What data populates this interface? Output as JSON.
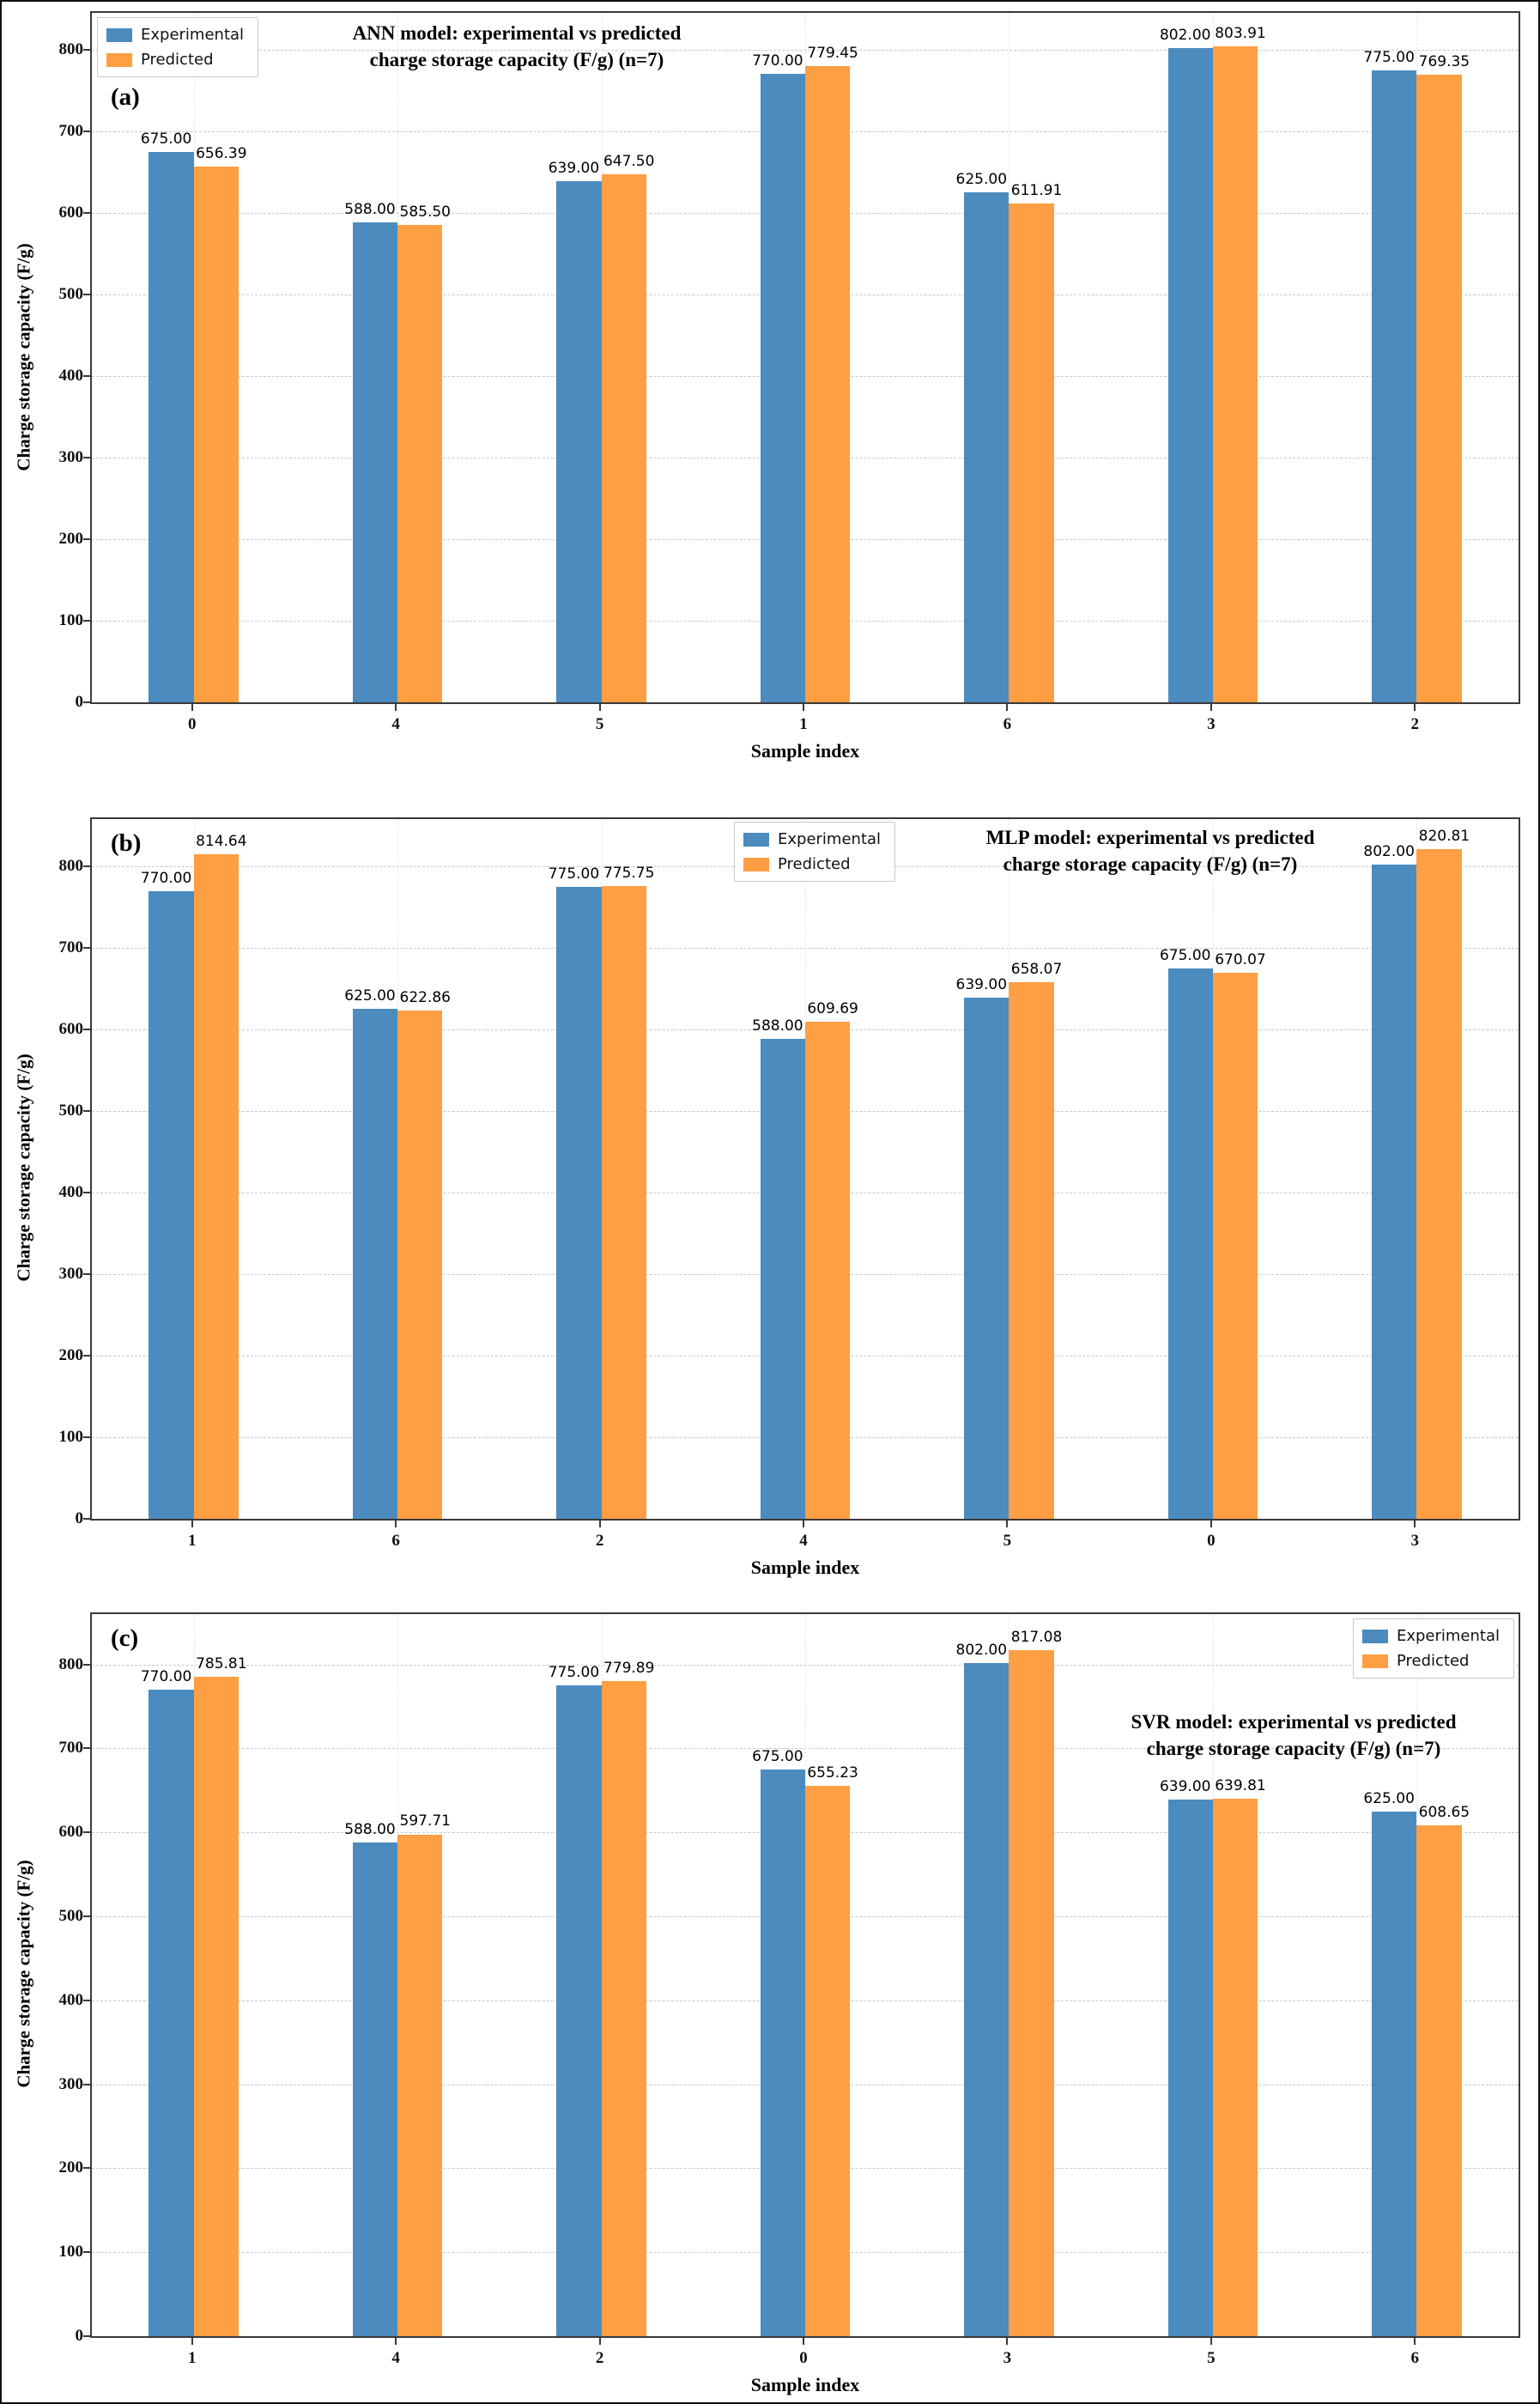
{
  "figure": {
    "background": "#ffffff",
    "frame_color": "#111111"
  },
  "colors": {
    "experimental": "#4C8BBE",
    "predicted": "#FF9E42",
    "grid": "#c8c8c8",
    "axis": "#3a3a3a"
  },
  "legend": {
    "experimental": "Experimental",
    "predicted": "Predicted"
  },
  "chart_data": [
    {
      "type": "bar",
      "panel_label": "(a)",
      "title_line1": "ANN model: experimental vs predicted",
      "title_line2": "charge storage capacity (F/g) (n=7)",
      "xlabel": "Sample index",
      "ylabel": "Charge storage capacity (F/g)",
      "categories": [
        "0",
        "4",
        "5",
        "1",
        "6",
        "3",
        "2"
      ],
      "series": [
        {
          "name": "Experimental",
          "values": [
            675.0,
            588.0,
            639.0,
            770.0,
            625.0,
            802.0,
            775.0
          ]
        },
        {
          "name": "Predicted",
          "values": [
            656.39,
            585.5,
            647.5,
            779.45,
            611.91,
            803.91,
            769.35
          ]
        }
      ],
      "yticks": [
        0,
        100,
        200,
        300,
        400,
        500,
        600,
        700,
        800
      ],
      "ylim": [
        0,
        845
      ],
      "legend_position": "upper-left",
      "grid": true
    },
    {
      "type": "bar",
      "panel_label": "(b)",
      "title_line1": "MLP model: experimental vs predicted",
      "title_line2": "charge storage capacity (F/g) (n=7)",
      "xlabel": "Sample index",
      "ylabel": "Charge storage capacity (F/g)",
      "categories": [
        "1",
        "6",
        "2",
        "4",
        "5",
        "0",
        "3"
      ],
      "series": [
        {
          "name": "Experimental",
          "values": [
            770.0,
            625.0,
            775.0,
            588.0,
            639.0,
            675.0,
            802.0
          ]
        },
        {
          "name": "Predicted",
          "values": [
            814.64,
            622.86,
            775.75,
            609.69,
            658.07,
            670.07,
            820.81
          ]
        }
      ],
      "yticks": [
        0,
        100,
        200,
        300,
        400,
        500,
        600,
        700,
        800
      ],
      "ylim": [
        0,
        858
      ],
      "legend_position": "upper-center",
      "grid": true
    },
    {
      "type": "bar",
      "panel_label": "(c)",
      "title_line1": "SVR model: experimental vs predicted",
      "title_line2": "charge storage capacity (F/g) (n=7)",
      "xlabel": "Sample index",
      "ylabel": "Charge storage capacity (F/g)",
      "categories": [
        "1",
        "4",
        "2",
        "0",
        "3",
        "5",
        "6"
      ],
      "series": [
        {
          "name": "Experimental",
          "values": [
            770.0,
            588.0,
            775.0,
            675.0,
            802.0,
            639.0,
            625.0
          ]
        },
        {
          "name": "Predicted",
          "values": [
            785.81,
            597.71,
            779.89,
            655.23,
            817.08,
            639.81,
            608.65
          ]
        }
      ],
      "yticks": [
        0,
        100,
        200,
        300,
        400,
        500,
        600,
        700,
        800
      ],
      "ylim": [
        0,
        860
      ],
      "legend_position": "upper-right",
      "grid": true
    }
  ]
}
